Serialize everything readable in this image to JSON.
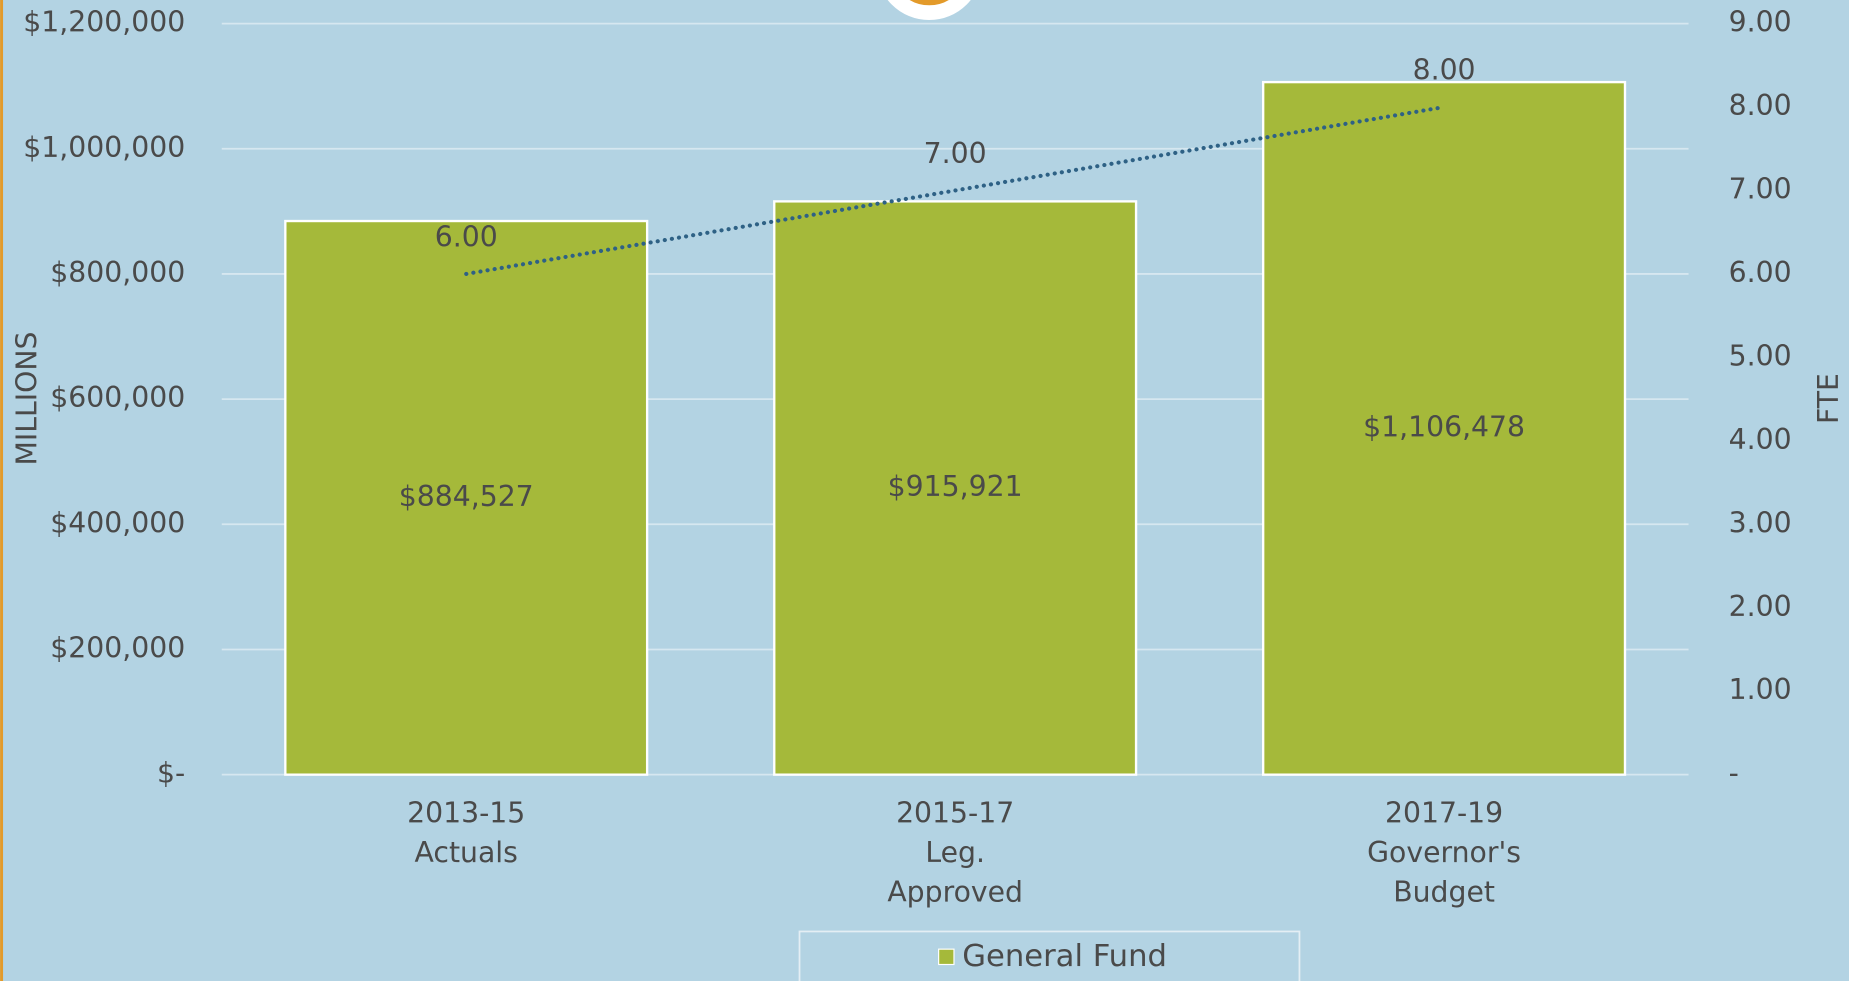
{
  "chart_data": {
    "type": "bar",
    "categories": [
      [
        "2013-15",
        "Actuals"
      ],
      [
        "2015-17",
        "Leg.",
        "Approved"
      ],
      [
        "2017-19",
        "Governor's",
        "Budget"
      ]
    ],
    "series": [
      {
        "name": "General Fund",
        "color": "#a5b93a",
        "values": [
          884527,
          915921,
          1106478
        ],
        "value_labels": [
          "$884,527",
          "$915,921",
          "$1,106,478"
        ]
      },
      {
        "type": "line",
        "axis": "y2",
        "color": "#2e6185",
        "values": [
          6,
          7,
          8
        ],
        "value_labels": [
          "6.00",
          "7.00",
          "8.00"
        ]
      }
    ],
    "ylabel": "MILLIONS",
    "y2label": "FTE",
    "ylim": [
      0,
      1200000
    ],
    "yticks": [
      {
        "value": 0,
        "label": "$-"
      },
      {
        "value": 200000,
        "label": "$200,000"
      },
      {
        "value": 400000,
        "label": "$400,000"
      },
      {
        "value": 600000,
        "label": "$600,000"
      },
      {
        "value": 800000,
        "label": "$800,000"
      },
      {
        "value": 1000000,
        "label": "$1,000,000"
      },
      {
        "value": 1200000,
        "label": "$1,200,000"
      }
    ],
    "y2lim": [
      0,
      9
    ],
    "y2ticks": [
      {
        "value": 0,
        "label": "-"
      },
      {
        "value": 1,
        "label": "1.00"
      },
      {
        "value": 2,
        "label": "2.00"
      },
      {
        "value": 3,
        "label": "3.00"
      },
      {
        "value": 4,
        "label": "4.00"
      },
      {
        "value": 5,
        "label": "5.00"
      },
      {
        "value": 6,
        "label": "6.00"
      },
      {
        "value": 7,
        "label": "7.00"
      },
      {
        "value": 8,
        "label": "8.00"
      },
      {
        "value": 9,
        "label": "9.00"
      }
    ],
    "grid": true,
    "legend": "bottom"
  }
}
